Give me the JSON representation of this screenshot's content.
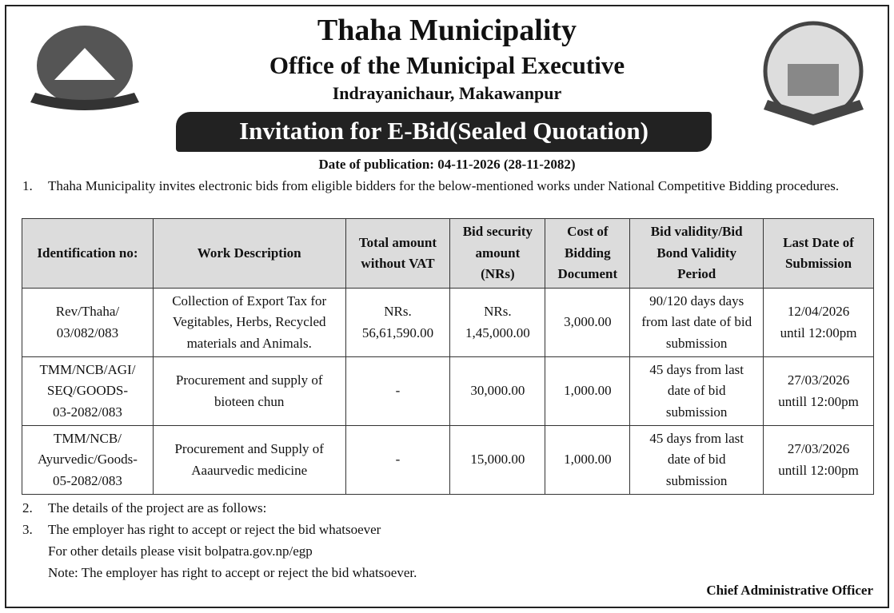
{
  "header": {
    "title": "Thaha Municipality",
    "subtitle": "Office of the Municipal Executive",
    "address": "Indrayanichaur, Makawanpur",
    "banner": "Invitation for E-Bid(Sealed Quotation)",
    "publication_date": "Date of publication: 04-11-2026 (28-11-2082)"
  },
  "intro": {
    "num": "1.",
    "text": "Thaha Municipality invites electronic bids from eligible bidders for the below-mentioned works under National Competitive Bidding procedures."
  },
  "table": {
    "headers": [
      "Identification no:",
      "Work Description",
      "Total amount\nwithout VAT",
      "Bid security\namount\n(NRs)",
      "Cost of\nBidding\nDocument",
      "Bid validity/Bid\nBond Validity\nPeriod",
      "Last Date of\nSubmission"
    ],
    "rows": [
      [
        "Rev/Thaha/\n03/082/083",
        "Collection of Export Tax for\nVegitables, Herbs, Recycled\nmaterials and Animals.",
        "NRs.\n56,61,590.00",
        "NRs.\n1,45,000.00",
        "3,000.00",
        "90/120 days days\nfrom last date of bid\nsubmission",
        "12/04/2026\nuntil 12:00pm"
      ],
      [
        "TMM/NCB/AGI/\nSEQ/GOODS-\n03-2082/083",
        "Procurement and supply of\nbioteen chun",
        "-",
        "30,000.00",
        "1,000.00",
        "45 days from last\ndate of bid\nsubmission",
        "27/03/2026\nuntill 12:00pm"
      ],
      [
        "TMM/NCB/\nAyurvedic/Goods-\n05-2082/083",
        "Procurement and Supply of\nAaaurvedic medicine",
        "-",
        "15,000.00",
        "1,000.00",
        "45 days from last\ndate of bid\nsubmission",
        "27/03/2026\nuntill 12:00pm"
      ]
    ]
  },
  "notes": [
    {
      "num": "2.",
      "text": "The details of the project are as follows:"
    },
    {
      "num": "3.",
      "text": "The employer has right to accept or reject the bid whatsoever"
    }
  ],
  "extra": [
    "For other details please visit bolpatra.gov.np/egp",
    "Note: The employer has right to accept or reject the bid whatsoever."
  ],
  "signature": "Chief Administrative Officer"
}
